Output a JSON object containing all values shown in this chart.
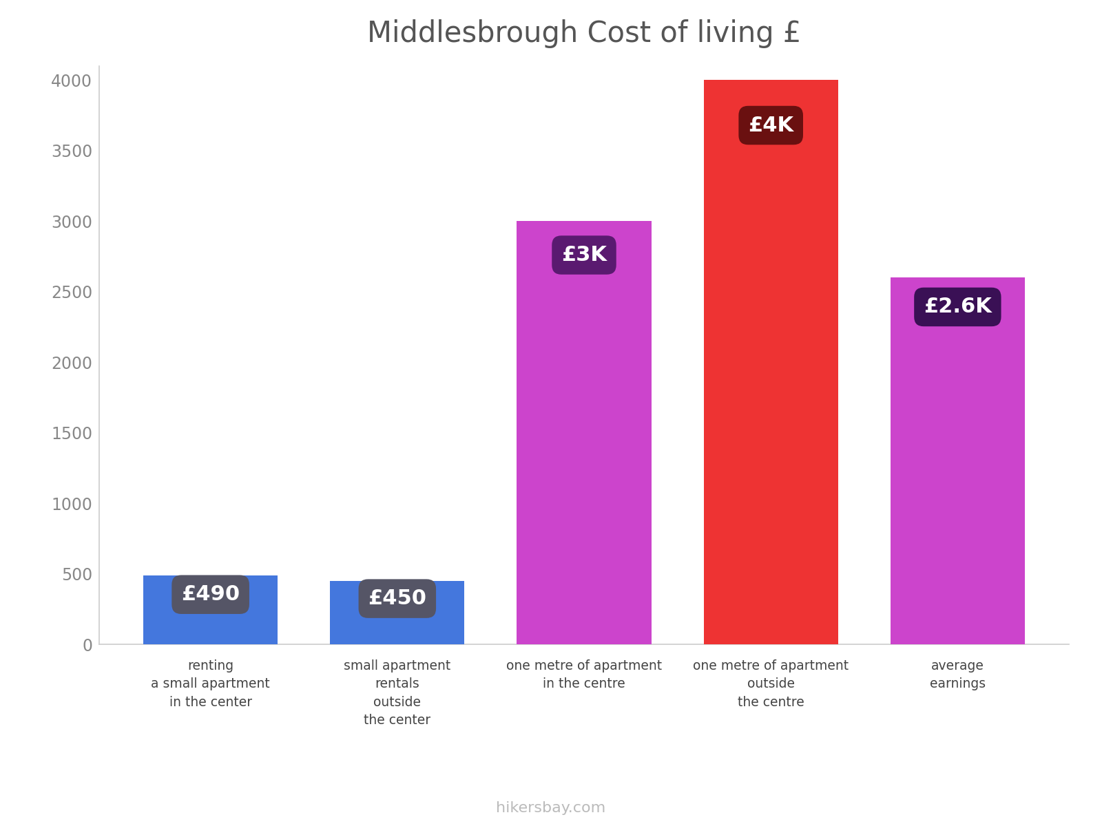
{
  "title": "Middlesbrough Cost of living £",
  "title_fontsize": 30,
  "categories": [
    "renting\na small apartment\nin the center",
    "small apartment\nrentals\noutside\nthe center",
    "one metre of apartment\nin the centre",
    "one metre of apartment\noutside\nthe centre",
    "average\nearnings"
  ],
  "values": [
    490,
    450,
    3000,
    4000,
    2600
  ],
  "bar_colors": [
    "#4477dd",
    "#4477dd",
    "#cc44cc",
    "#ee3333",
    "#cc44cc"
  ],
  "label_texts": [
    "£490",
    "£450",
    "£3K",
    "£4K",
    "£2.6K"
  ],
  "label_bg_colors": [
    "#555566",
    "#555566",
    "#5a1a70",
    "#6a1010",
    "#3a1055"
  ],
  "ylim": [
    0,
    4100
  ],
  "yticks": [
    0,
    500,
    1000,
    1500,
    2000,
    2500,
    3000,
    3500,
    4000
  ],
  "watermark": "hikersbay.com",
  "background_color": "#ffffff",
  "spine_color": "#cccccc",
  "tick_color": "#888888",
  "title_color": "#555555"
}
